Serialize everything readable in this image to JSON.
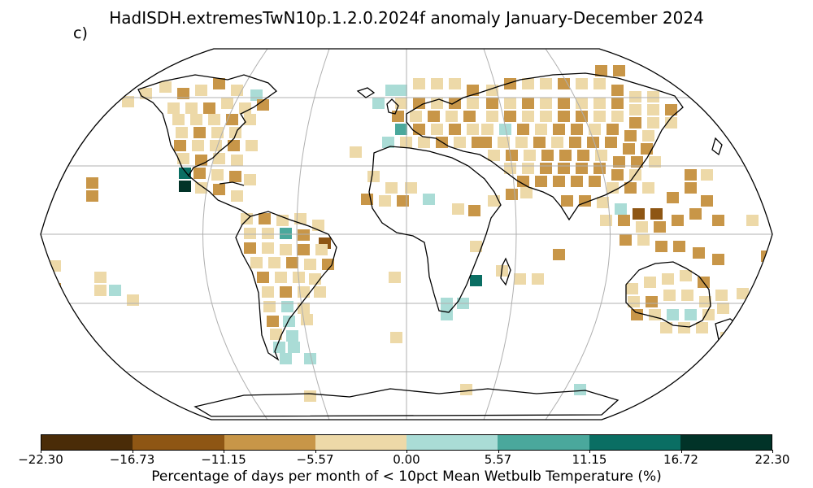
{
  "figure": {
    "title": "HadISDH.extremesTwN10p.1.2.0.2024f anomaly January-December 2024",
    "panel_label": "c)"
  },
  "colorbar": {
    "label": "Percentage of days per month of < 10pct Mean Wetbulb Temperature (%)",
    "ticks": [
      "−22.30",
      "−16.73",
      "−11.15",
      "−5.57",
      "0.00",
      "5.57",
      "11.15",
      "16.72",
      "22.30"
    ],
    "colors": [
      "#4a2c08",
      "#8e5614",
      "#c89648",
      "#edd9a8",
      "#aadcd6",
      "#4aa89c",
      "#0a6e63",
      "#013328"
    ]
  },
  "map": {
    "projection": "Robinson",
    "ocean_color": "#ffffff",
    "graticule_color": "#b0b0b0",
    "coastline_color": "#000000"
  }
}
